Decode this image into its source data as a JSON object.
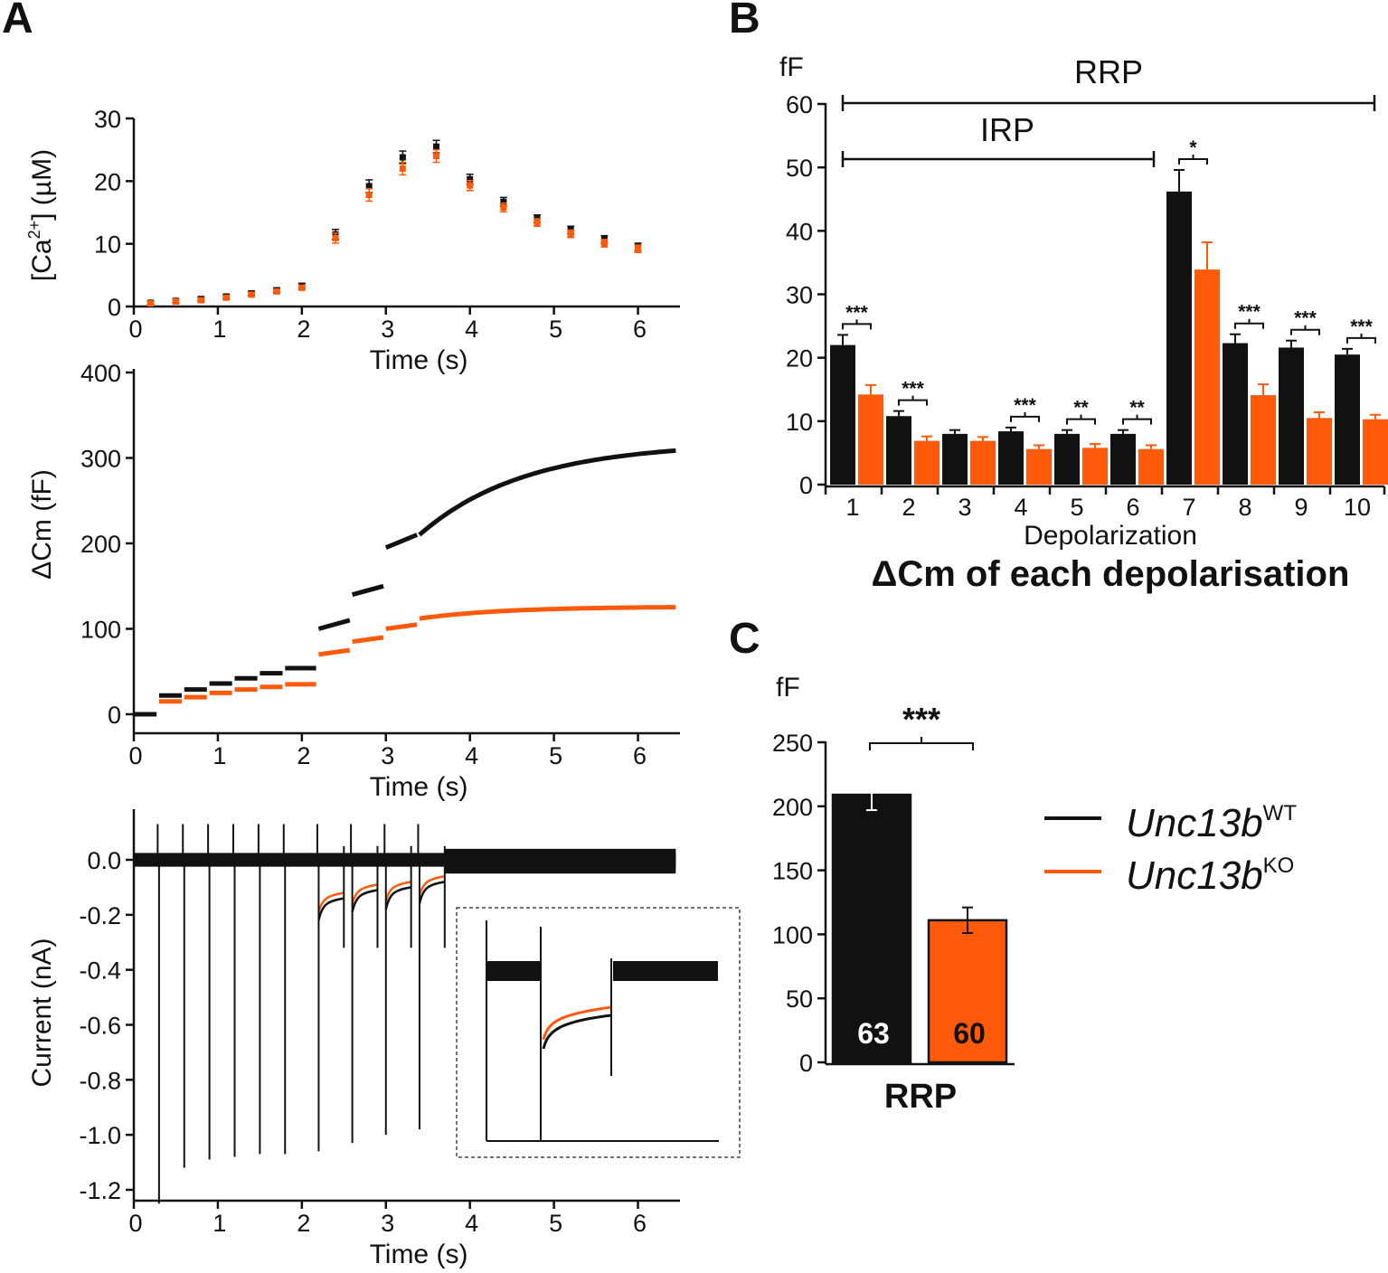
{
  "colors": {
    "wt": "#111111",
    "ko": "#ff5a0a"
  },
  "panels": {
    "A": "A",
    "B": "B",
    "C": "C"
  },
  "legend": {
    "wt": {
      "name": "Unc13b",
      "sup": "WT"
    },
    "ko": {
      "name": "Unc13b",
      "sup": "KO"
    }
  },
  "chart_data": [
    {
      "id": "A-calcium",
      "type": "scatter",
      "title": "",
      "xlabel": "Time (s)",
      "ylabel": "[Ca2+] (µM)",
      "ylabel_parts": {
        "pre": "[Ca",
        "sup": "2+",
        "post": "] (µM)"
      },
      "xlim": [
        0,
        6.5
      ],
      "ylim": [
        0,
        30
      ],
      "xticks": [
        "0",
        "1",
        "2",
        "3",
        "4",
        "5",
        "6"
      ],
      "yticks": [
        "0",
        "10",
        "20",
        "30"
      ],
      "x": [
        0.2,
        0.5,
        0.8,
        1.1,
        1.4,
        1.7,
        2.0,
        2.4,
        2.8,
        3.2,
        3.6,
        4.0,
        4.4,
        4.8,
        5.2,
        5.6,
        6.0
      ],
      "series": [
        {
          "key": "wt",
          "values": [
            0.6,
            0.9,
            1.2,
            1.6,
            2.1,
            2.6,
            3.3,
            11.5,
            19.2,
            23.8,
            25.5,
            20.3,
            16.7,
            14.0,
            12.2,
            10.7,
            9.5
          ],
          "errors": [
            0.3,
            0.3,
            0.3,
            0.3,
            0.3,
            0.3,
            0.4,
            0.8,
            1.0,
            1.0,
            1.0,
            0.8,
            0.7,
            0.6,
            0.6,
            0.6,
            0.6
          ]
        },
        {
          "key": "ko",
          "values": [
            0.5,
            0.8,
            1.0,
            1.4,
            1.9,
            2.4,
            3.0,
            10.9,
            17.8,
            22.0,
            24.0,
            19.3,
            15.8,
            13.4,
            11.6,
            10.1,
            9.2
          ],
          "errors": [
            0.3,
            0.3,
            0.3,
            0.3,
            0.3,
            0.3,
            0.4,
            0.8,
            1.0,
            1.0,
            1.0,
            0.8,
            0.7,
            0.6,
            0.6,
            0.6,
            0.6
          ]
        }
      ]
    },
    {
      "id": "A-capacitance",
      "type": "line",
      "title": "",
      "xlabel": "Time (s)",
      "ylabel": "ΔCm (fF)",
      "xlim": [
        0,
        6.5
      ],
      "ylim": [
        0,
        400
      ],
      "xticks": [
        "0",
        "1",
        "2",
        "3",
        "4",
        "5",
        "6"
      ],
      "yticks": [
        "0",
        "100",
        "200",
        "300",
        "400"
      ],
      "segments_x": [
        [
          0,
          0.27
        ],
        [
          0.3,
          0.57
        ],
        [
          0.6,
          0.87
        ],
        [
          0.9,
          1.17
        ],
        [
          1.2,
          1.47
        ],
        [
          1.5,
          1.77
        ],
        [
          1.8,
          2.17
        ],
        [
          2.2,
          2.57
        ],
        [
          2.6,
          2.97
        ],
        [
          3.0,
          3.37
        ],
        [
          3.4,
          6.45
        ]
      ],
      "series": [
        {
          "key": "wt",
          "levels": [
            0,
            22,
            29,
            36,
            42,
            48,
            54,
            100,
            140,
            195
          ],
          "drift": [
            [
              0,
              0
            ],
            [
              0,
              0
            ],
            [
              0,
              0
            ],
            [
              0,
              0
            ],
            [
              0,
              0
            ],
            [
              0,
              0
            ],
            [
              0,
              0
            ],
            [
              0,
              10
            ],
            [
              0,
              10
            ],
            [
              0,
              15
            ]
          ],
          "final": {
            "start": 210,
            "end": 318,
            "tau": 1.25
          }
        },
        {
          "key": "ko",
          "levels": [
            0,
            15,
            20,
            25,
            29,
            32,
            35,
            70,
            85,
            100
          ],
          "drift": [
            [
              0,
              0
            ],
            [
              0,
              0
            ],
            [
              0,
              0
            ],
            [
              0,
              0
            ],
            [
              0,
              0
            ],
            [
              0,
              0
            ],
            [
              0,
              0
            ],
            [
              0,
              5
            ],
            [
              0,
              5
            ],
            [
              0,
              5
            ]
          ],
          "final": {
            "start": 112,
            "end": 126,
            "tau": 1.0
          }
        }
      ]
    },
    {
      "id": "A-current",
      "type": "line",
      "title": "",
      "xlabel": "Time (s)",
      "ylabel": "Current (nA)",
      "xlim": [
        0,
        6.5
      ],
      "ylim": [
        -1.25,
        0.18
      ],
      "xticks": [
        "0",
        "1",
        "2",
        "3",
        "4",
        "5",
        "6"
      ],
      "yticks": [
        "0.0",
        "-0.2",
        "-0.4",
        "-0.6",
        "-0.8",
        "-1.0",
        "-1.2"
      ],
      "pulses": [
        {
          "t": 0.3,
          "peak": -1.25,
          "steady": -0.01
        },
        {
          "t": 0.6,
          "peak": -1.12,
          "steady": -0.01
        },
        {
          "t": 0.9,
          "peak": -1.09,
          "steady": -0.01
        },
        {
          "t": 1.2,
          "peak": -1.08,
          "steady": -0.01
        },
        {
          "t": 1.5,
          "peak": -1.07,
          "steady": -0.01
        },
        {
          "t": 1.8,
          "peak": -1.07,
          "steady": -0.01
        },
        {
          "t": 2.2,
          "peak": -1.06,
          "steady": -0.16,
          "steady_ko": -0.14,
          "dur": 0.3
        },
        {
          "t": 2.6,
          "peak": -1.03,
          "steady": -0.13,
          "steady_ko": -0.11,
          "dur": 0.3
        },
        {
          "t": 3.0,
          "peak": -1.0,
          "steady": -0.12,
          "steady_ko": -0.1,
          "dur": 0.3
        },
        {
          "t": 3.4,
          "peak": -0.98,
          "steady": -0.1,
          "steady_ko": -0.08,
          "dur": 0.3
        }
      ]
    },
    {
      "id": "B-depolarization",
      "type": "bar",
      "title": "ΔCm of each depolarisation",
      "xlabel": "Depolarization",
      "ylabel": "fF",
      "ylim": [
        0,
        60
      ],
      "categories": [
        "1",
        "2",
        "3",
        "4",
        "5",
        "6",
        "7",
        "8",
        "9",
        "10"
      ],
      "yticks": [
        "0",
        "10",
        "20",
        "30",
        "40",
        "50",
        "60"
      ],
      "series": [
        {
          "key": "wt",
          "values": [
            22,
            10.8,
            8.0,
            8.4,
            8.0,
            8.0,
            46.2,
            22.3,
            21.6,
            20.5
          ],
          "errors": [
            1.6,
            0.8,
            0.6,
            0.6,
            0.6,
            0.6,
            3.4,
            1.4,
            1.1,
            0.9
          ]
        },
        {
          "key": "ko",
          "values": [
            14.2,
            6.9,
            6.9,
            5.6,
            5.8,
            5.6,
            33.9,
            14.1,
            10.5,
            10.3
          ],
          "errors": [
            1.5,
            0.7,
            0.6,
            0.6,
            0.6,
            0.6,
            4.3,
            1.7,
            0.9,
            0.7
          ]
        }
      ],
      "significance": [
        "***",
        "***",
        "",
        "***",
        "**",
        "**",
        "*",
        "***",
        "***",
        "***"
      ],
      "ranges": [
        {
          "label": "RRP",
          "from": "1",
          "to": "10"
        },
        {
          "label": "IRP",
          "from": "1",
          "to": "6"
        }
      ]
    },
    {
      "id": "C-rrp",
      "type": "bar",
      "title": "",
      "xlabel": "RRP",
      "ylabel": "fF",
      "ylim": [
        0,
        250
      ],
      "yticks": [
        "0",
        "50",
        "100",
        "150",
        "200",
        "250"
      ],
      "series": [
        {
          "key": "wt",
          "value": 209,
          "error": 12,
          "n": "63"
        },
        {
          "key": "ko",
          "value": 111,
          "error": 10,
          "n": "60"
        }
      ],
      "significance": "***"
    }
  ]
}
